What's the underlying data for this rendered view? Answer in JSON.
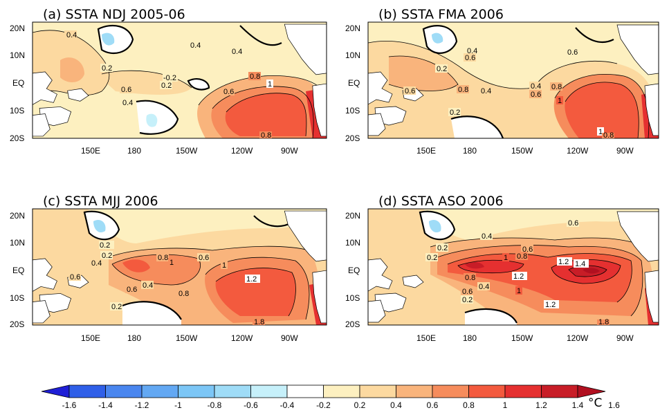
{
  "figure": {
    "panels": [
      {
        "id": "a",
        "title": "(a) SSTA NDJ 2005-06",
        "contour_labels": [
          "0.4",
          "0.2",
          "0.4",
          "0.4",
          "0.6",
          "-0.2",
          "0.2",
          "0.4",
          "0.6",
          "0.8",
          "1",
          "0.8"
        ],
        "fills": [
          {
            "level": 0.2,
            "region": "west-north"
          },
          {
            "level": 0.4,
            "region": "west-north-inner"
          },
          {
            "level": 0.2,
            "region": "central"
          },
          {
            "level": 0.4,
            "region": "central-inner"
          },
          {
            "level": 0.6,
            "region": "east"
          },
          {
            "level": 0.8,
            "region": "east-inner"
          },
          {
            "level": 1.0,
            "region": "east-core"
          }
        ]
      },
      {
        "id": "b",
        "title": "(b) SSTA FMA 2006",
        "contour_labels": [
          "0.4",
          "0.6",
          "0.2",
          "0.6",
          "0.8",
          "0.4",
          "0.4",
          "0.6",
          "0.8",
          "0.6",
          "1",
          "0.2",
          "1",
          "0.8"
        ]
      },
      {
        "id": "c",
        "title": "(c) SSTA MJJ 2006",
        "contour_labels": [
          "0.2",
          "0.2",
          "0.4",
          "0.8",
          "1",
          "0.6",
          "1",
          "0.6",
          "0.6",
          "0.4",
          "0.8",
          "1.2",
          "0.2",
          "1.8"
        ]
      },
      {
        "id": "d",
        "title": "(d) SSTA ASO 2006",
        "contour_labels": [
          "0.4",
          "0.6",
          "0.2",
          "0.2",
          "0.6",
          "0.8",
          "1",
          "1.2",
          "1.4",
          "0.8",
          "1.2",
          "0.6",
          "0.4",
          "0.2",
          "1",
          "1.2",
          "1.8"
        ]
      }
    ],
    "axes": {
      "lat_labels": [
        "20N",
        "10N",
        "EQ",
        "10S",
        "20S"
      ],
      "lon_labels": [
        "150E",
        "180",
        "150W",
        "120W",
        "90W"
      ]
    },
    "colorbar": {
      "tick_labels": [
        "-1.6",
        "-1.4",
        "-1.2",
        "-1",
        "-0.8",
        "-0.6",
        "-0.4",
        "-0.2",
        "0.2",
        "0.4",
        "0.6",
        "0.8",
        "1",
        "1.2",
        "1.4",
        "1.6"
      ],
      "unit": "°C",
      "colors": [
        "#1f1fd6",
        "#2f5fe8",
        "#4a86ef",
        "#63a8f3",
        "#7cc6f6",
        "#9fdcf7",
        "#c6f0fa",
        "#ffffff",
        "#fdf0c0",
        "#fcd9a0",
        "#f9b47c",
        "#f68c5c",
        "#f35a3e",
        "#e53030",
        "#c81d27",
        "#b11020"
      ]
    }
  }
}
